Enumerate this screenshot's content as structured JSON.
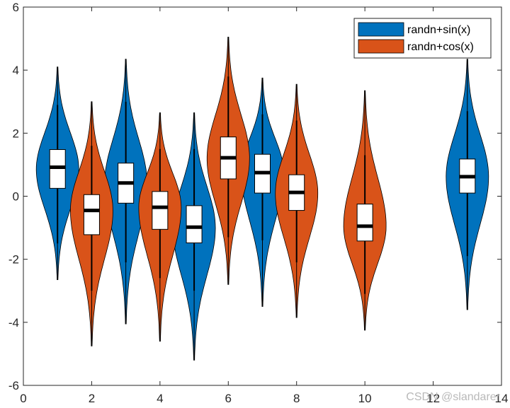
{
  "chart_data": {
    "type": "violin",
    "xlim": [
      0,
      14
    ],
    "ylim": [
      -6,
      6
    ],
    "x_ticks": [
      0,
      2,
      4,
      6,
      8,
      10,
      12,
      14
    ],
    "y_ticks": [
      -6,
      -4,
      -2,
      0,
      2,
      4,
      6
    ],
    "x_tick_labels": [
      "0",
      "2",
      "4",
      "6",
      "8",
      "10",
      "12",
      "14"
    ],
    "y_tick_labels": [
      "-6",
      "-4",
      "-2",
      "0",
      "2",
      "4",
      "6"
    ],
    "legend_position": "top-right",
    "series": [
      {
        "name": "randn+sin(x)",
        "color": "#0072BD",
        "violins": [
          {
            "x": 1,
            "min": -2.65,
            "max": 4.1,
            "q1": 0.25,
            "median": 0.92,
            "q3": 1.48,
            "whisker_low": -1.5,
            "whisker_high": 2.9,
            "peak": 0.85,
            "spread": 1.0
          },
          {
            "x": 3,
            "min": -4.05,
            "max": 4.35,
            "q1": -0.22,
            "median": 0.42,
            "q3": 1.05,
            "whisker_low": -2.1,
            "whisker_high": 3.0,
            "peak": 0.4,
            "spread": 1.0
          },
          {
            "x": 5,
            "min": -5.2,
            "max": 2.65,
            "q1": -1.48,
            "median": -0.98,
            "q3": -0.3,
            "whisker_low": -3.0,
            "whisker_high": 1.5,
            "peak": -1.0,
            "spread": 1.0
          },
          {
            "x": 7,
            "min": -3.5,
            "max": 3.75,
            "q1": 0.1,
            "median": 0.75,
            "q3": 1.33,
            "whisker_low": -1.4,
            "whisker_high": 2.6,
            "peak": 0.75,
            "spread": 1.0
          },
          {
            "x": 13,
            "min": -3.6,
            "max": 4.35,
            "q1": 0.1,
            "median": 0.62,
            "q3": 1.18,
            "whisker_low": -1.9,
            "whisker_high": 2.7,
            "peak": 0.62,
            "spread": 1.0
          }
        ]
      },
      {
        "name": "randn+cos(x)",
        "color": "#D95319",
        "violins": [
          {
            "x": 2,
            "min": -4.75,
            "max": 3.0,
            "q1": -1.22,
            "median": -0.45,
            "q3": 0.05,
            "whisker_low": -3.0,
            "whisker_high": 1.6,
            "peak": -0.45,
            "spread": 1.0
          },
          {
            "x": 4,
            "min": -4.6,
            "max": 2.65,
            "q1": -1.05,
            "median": -0.35,
            "q3": 0.15,
            "whisker_low": -2.6,
            "whisker_high": 1.5,
            "peak": -0.35,
            "spread": 1.0
          },
          {
            "x": 6,
            "min": -2.8,
            "max": 5.05,
            "q1": 0.55,
            "median": 1.22,
            "q3": 1.88,
            "whisker_low": -1.3,
            "whisker_high": 3.8,
            "peak": 1.2,
            "spread": 1.0
          },
          {
            "x": 8,
            "min": -3.85,
            "max": 3.55,
            "q1": -0.45,
            "median": 0.12,
            "q3": 0.68,
            "whisker_low": -2.1,
            "whisker_high": 2.4,
            "peak": 0.1,
            "spread": 1.0
          },
          {
            "x": 10,
            "min": -4.25,
            "max": 3.35,
            "q1": -1.42,
            "median": -0.95,
            "q3": -0.25,
            "whisker_low": -3.1,
            "whisker_high": 1.3,
            "peak": -0.95,
            "spread": 1.0
          }
        ]
      }
    ]
  },
  "watermark": "CSDN @slandarer"
}
